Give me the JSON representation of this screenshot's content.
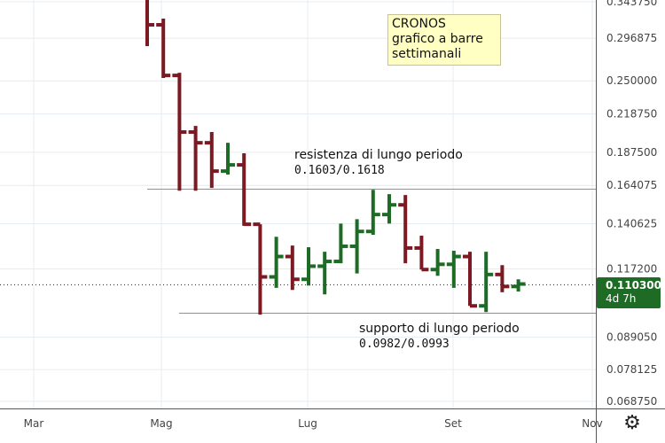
{
  "chart_data": {
    "type": "ohlc",
    "title_box": [
      "CRONOS",
      "grafico a barre",
      "settimanali"
    ],
    "y_scale": "log",
    "ylim": [
      0.06875,
      0.34375
    ],
    "y_ticks": [
      "0.343750",
      "0.296875",
      "0.250000",
      "0.218750",
      "0.187500",
      "0.164075",
      "0.140625",
      "0.117200",
      "0.089050",
      "0.078125",
      "0.068750"
    ],
    "x_ticks": [
      "Mar",
      "Mag",
      "Lug",
      "Set",
      "Nov"
    ],
    "grid": true,
    "colors": {
      "up": "#1e6b26",
      "down": "#7b1a22",
      "level_line": "#6ab04c"
    },
    "bars": [
      {
        "o": null,
        "h": 0.36,
        "l": 0.2875,
        "c": 0.3133
      },
      {
        "o": 0.3133,
        "h": 0.3212,
        "l": 0.2529,
        "c": 0.2555
      },
      {
        "o": 0.2555,
        "h": 0.2583,
        "l": 0.1606,
        "c": 0.2034
      },
      {
        "o": 0.2034,
        "h": 0.2085,
        "l": 0.1606,
        "c": 0.1948
      },
      {
        "o": 0.1948,
        "h": 0.2034,
        "l": 0.1624,
        "c": 0.1738
      },
      {
        "o": 0.1738,
        "h": 0.1948,
        "l": 0.1714,
        "c": 0.1782
      },
      {
        "o": 0.1782,
        "h": 0.1867,
        "l": 0.1394,
        "c": 0.1403
      },
      {
        "o": 0.1403,
        "h": 0.1403,
        "l": 0.0975,
        "c": 0.1135
      },
      {
        "o": 0.1135,
        "h": 0.1334,
        "l": 0.1086,
        "c": 0.1232
      },
      {
        "o": 0.1232,
        "h": 0.1288,
        "l": 0.1077,
        "c": 0.1124
      },
      {
        "o": 0.1124,
        "h": 0.1279,
        "l": 0.1096,
        "c": 0.1185
      },
      {
        "o": 0.1185,
        "h": 0.1256,
        "l": 0.1058,
        "c": 0.1208
      },
      {
        "o": 0.1208,
        "h": 0.1407,
        "l": 0.1199,
        "c": 0.1284
      },
      {
        "o": 0.1284,
        "h": 0.1432,
        "l": 0.1151,
        "c": 0.1363
      },
      {
        "o": 0.1363,
        "h": 0.1612,
        "l": 0.1345,
        "c": 0.1459
      },
      {
        "o": 0.1459,
        "h": 0.1584,
        "l": 0.1407,
        "c": 0.1517
      },
      {
        "o": 0.1517,
        "h": 0.1578,
        "l": 0.1199,
        "c": 0.1275
      },
      {
        "o": 0.1275,
        "h": 0.134,
        "l": 0.1169,
        "c": 0.1169
      },
      {
        "o": 0.1169,
        "h": 0.127,
        "l": 0.114,
        "c": 0.1194
      },
      {
        "o": 0.1194,
        "h": 0.1261,
        "l": 0.1086,
        "c": 0.1232
      },
      {
        "o": 0.1232,
        "h": 0.1256,
        "l": 0.101,
        "c": 0.101
      },
      {
        "o": 0.101,
        "h": 0.1256,
        "l": 0.0985,
        "c": 0.1146
      },
      {
        "o": 0.1146,
        "h": 0.119,
        "l": 0.1067,
        "c": 0.1092
      },
      {
        "o": 0.1092,
        "h": 0.1124,
        "l": 0.107,
        "c": 0.1103
      }
    ],
    "levels": [
      {
        "label": "resistenza di lungo periodo",
        "value_text": "0.1603/0.1618",
        "value": 0.1618
      },
      {
        "label": "supporto di lungo periodo",
        "value_text": "0.0982/0.0993",
        "value": 0.0982
      }
    ],
    "last_price": {
      "value": 0.1103,
      "label": "0.110300",
      "countdown": "4d 7h"
    }
  }
}
